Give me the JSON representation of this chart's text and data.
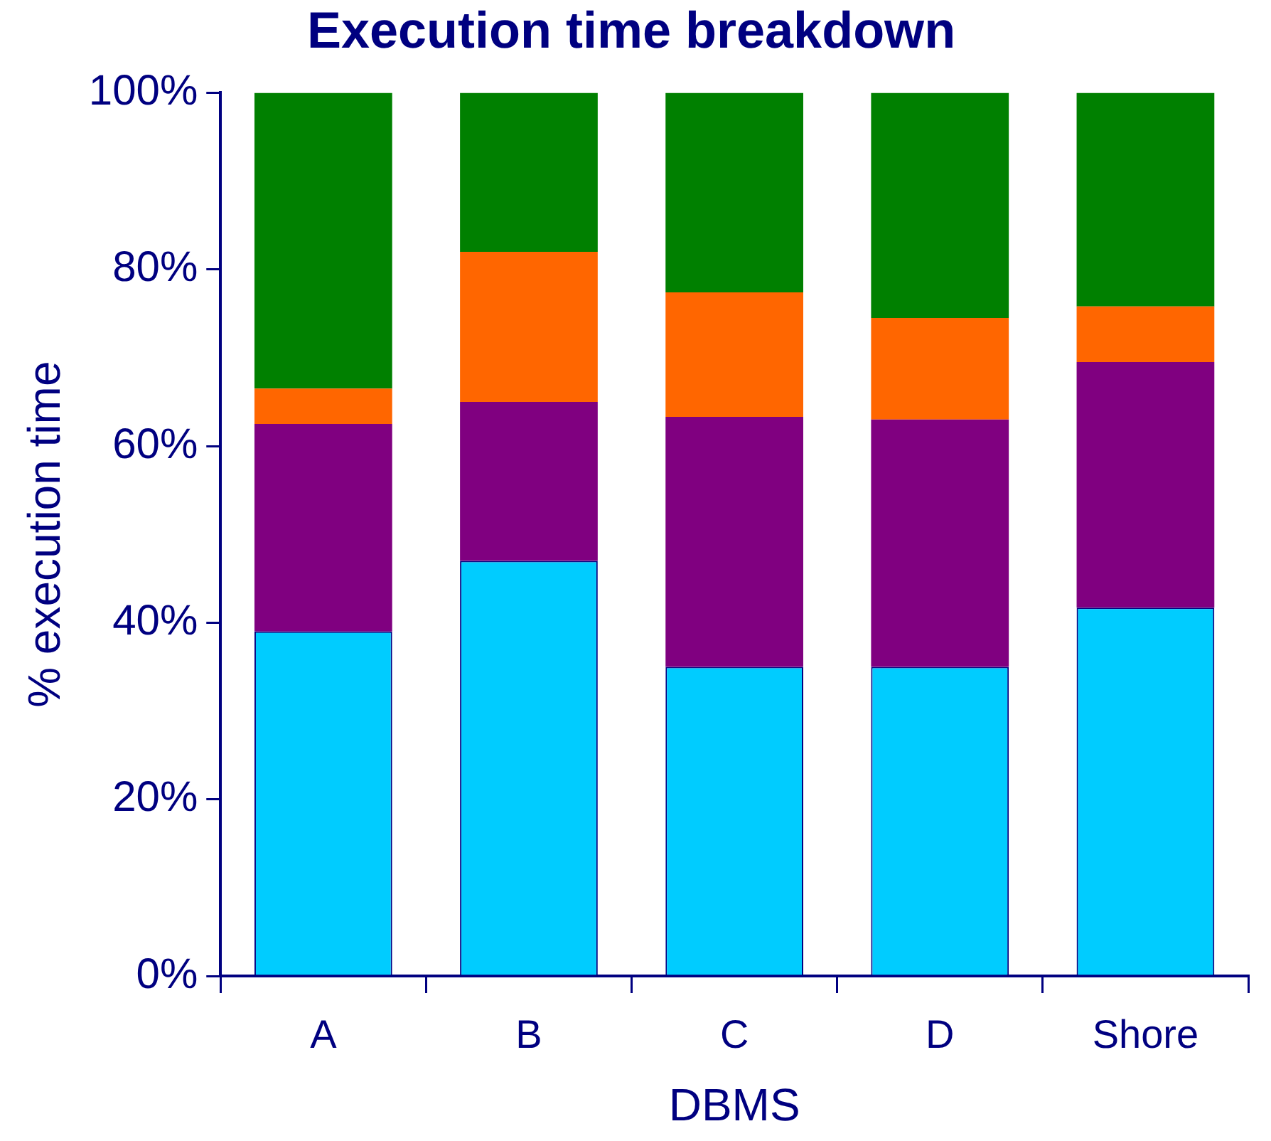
{
  "chart_data": {
    "type": "bar",
    "title": "Execution time breakdown",
    "xlabel": "DBMS",
    "ylabel": "% execution time",
    "categories": [
      "A",
      "B",
      "C",
      "D",
      "Shore"
    ],
    "stacked": true,
    "grid": false,
    "legend": false,
    "series": [
      {
        "color": "#00ccff",
        "values": [
          39,
          47,
          35,
          35,
          41.7
        ]
      },
      {
        "color": "#800080",
        "values": [
          23.5,
          18,
          28.3,
          28,
          27.8
        ]
      },
      {
        "color": "#ff6600",
        "values": [
          4,
          17,
          14.1,
          11.5,
          6.3
        ]
      },
      {
        "color": "#008000",
        "values": [
          33.5,
          18,
          22.6,
          25.5,
          24.2
        ]
      }
    ],
    "ylim": [
      0,
      100
    ],
    "yticks": [
      {
        "value": 0,
        "label": "0%"
      },
      {
        "value": 20,
        "label": "20%"
      },
      {
        "value": 40,
        "label": "40%"
      },
      {
        "value": 60,
        "label": "60%"
      },
      {
        "value": 80,
        "label": "80%"
      },
      {
        "value": 100,
        "label": "100%"
      }
    ]
  }
}
